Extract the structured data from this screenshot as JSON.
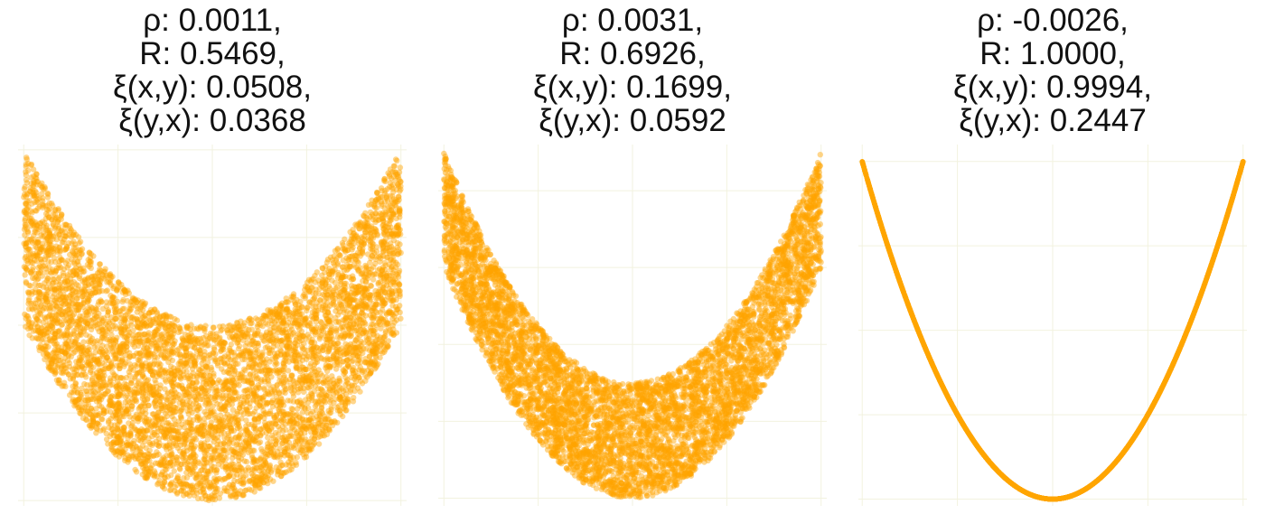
{
  "colors": {
    "points": "#FFA500",
    "grid": "#F2F2DF",
    "title": "#111111"
  },
  "chart_data": [
    {
      "type": "scatter",
      "title_lines": [
        "ρ: 0.0011,",
        "R: 0.5469,",
        "ξ(x,y): 0.0508,",
        "ξ(y,x): 0.0368"
      ],
      "generator": {
        "shape": "band",
        "x_range": [
          -1,
          1
        ],
        "lower": "x^2",
        "upper": "x^2 + 1",
        "n_points": 6000
      },
      "xlim": [
        -1.03,
        1.03
      ],
      "ylim": [
        -0.03,
        2.03
      ],
      "grid": true,
      "axis_labels": false
    },
    {
      "type": "scatter",
      "title_lines": [
        "ρ: 0.0031,",
        "R: 0.6926,",
        "ξ(x,y): 0.1699,",
        "ξ(y,x): 0.0592"
      ],
      "generator": {
        "shape": "band",
        "x_range": [
          -1,
          1
        ],
        "lower": "1.5 x^2",
        "upper": "1.5 x^2 + 0.75",
        "n_points": 6000
      },
      "xlim": [
        -1.03,
        1.03
      ],
      "ylim": [
        -0.05,
        2.3
      ],
      "grid": true,
      "axis_labels": false
    },
    {
      "type": "scatter",
      "title_lines": [
        "ρ: -0.0026,",
        "R: 1.0000,",
        "ξ(x,y): 0.9994,",
        "ξ(y,x): 0.2447"
      ],
      "generator": {
        "shape": "curve",
        "x_range": [
          -1,
          1
        ],
        "function": "x^2",
        "n_points": 6000
      },
      "xlim": [
        -1.02,
        1.02
      ],
      "ylim": [
        -0.02,
        1.05
      ],
      "grid": true,
      "axis_labels": false
    }
  ]
}
